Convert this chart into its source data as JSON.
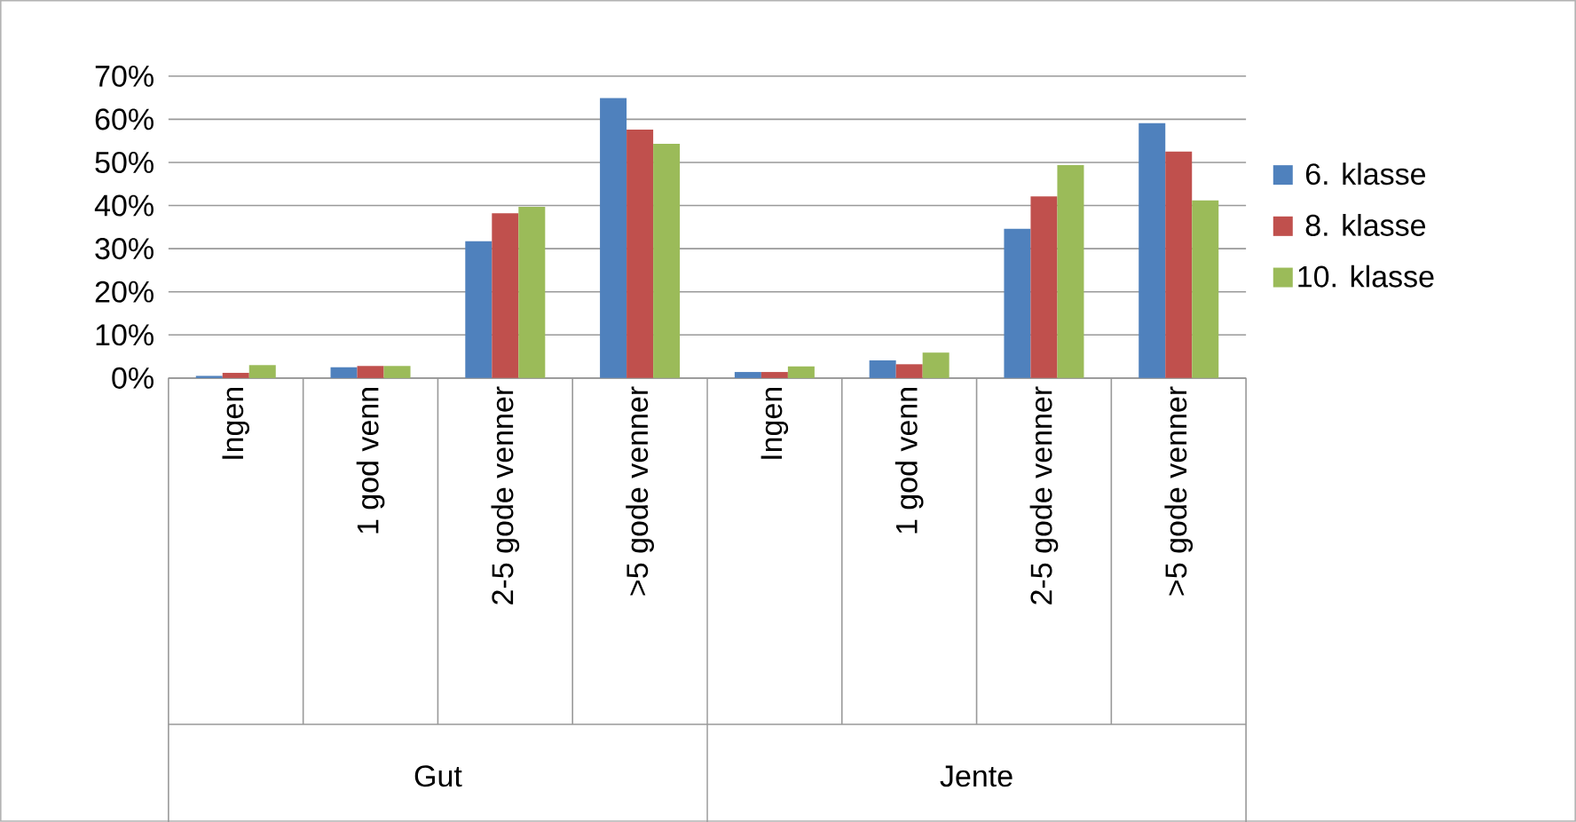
{
  "chart_data": {
    "type": "bar",
    "categories": [
      "Ingen",
      "1 god venn",
      "2-5 gode venner",
      ">5 gode venner",
      "Ingen",
      "1 god venn",
      "2-5 gode venner",
      ">5 gode venner"
    ],
    "annotations": [
      "Gut",
      "Jente"
    ],
    "series": [
      {
        "name": "6. klasse",
        "color": "#4f81bd",
        "values": [
          0.5,
          2.5,
          31.7,
          64.9,
          1.4,
          4.1,
          34.6,
          59.1
        ]
      },
      {
        "name": "8. klasse",
        "color": "#c0504d",
        "values": [
          1.2,
          2.8,
          38.2,
          57.6,
          1.4,
          3.2,
          42.1,
          52.5
        ]
      },
      {
        "name": "10. klasse",
        "color": "#9bbb59",
        "values": [
          3.0,
          2.8,
          39.7,
          54.3,
          2.7,
          5.9,
          49.4,
          41.2
        ]
      }
    ],
    "ylim": [
      0,
      70
    ],
    "yticks": [
      {
        "value": 0,
        "label": "0%"
      },
      {
        "value": 10,
        "label": "10%"
      },
      {
        "value": 20,
        "label": "20%"
      },
      {
        "value": 30,
        "label": "30%"
      },
      {
        "value": 40,
        "label": "40%"
      },
      {
        "value": 50,
        "label": "50%"
      },
      {
        "value": 60,
        "label": "60%"
      },
      {
        "value": 70,
        "label": "70%"
      }
    ],
    "grid": "y",
    "legend": "right"
  }
}
